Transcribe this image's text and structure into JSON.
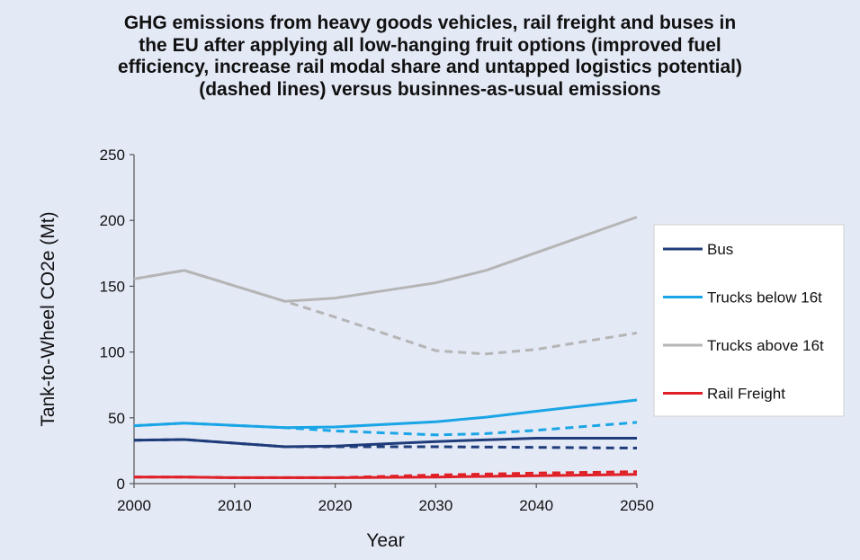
{
  "chart_data": {
    "type": "line",
    "title_lines": [
      "GHG emissions from heavy goods vehicles, rail freight and buses in",
      "the EU after applying all low-hanging fruit options (improved fuel",
      "efficiency, increase rail modal share and untapped logistics potential)",
      "(dashed lines) versus businnes-as-usual emissions"
    ],
    "xlabel": "Year",
    "ylabel": "Tank-to-Wheel CO2e (Mt)",
    "xlim": [
      2000,
      2050
    ],
    "ylim": [
      0,
      250
    ],
    "xticks": [
      2000,
      2010,
      2020,
      2030,
      2040,
      2050
    ],
    "yticks": [
      0,
      50,
      100,
      150,
      200,
      250
    ],
    "grid": false,
    "legend_position": "right",
    "legend": [
      {
        "name": "Bus",
        "color": "#1f3c7a"
      },
      {
        "name": "Trucks below 16t",
        "color": "#1aa5e6"
      },
      {
        "name": "Trucks above 16t",
        "color": "#b5b5b5"
      },
      {
        "name": "Rail Freight",
        "color": "#e02027"
      }
    ],
    "series": [
      {
        "name": "Bus",
        "style": "solid",
        "color": "#1f3c7a",
        "x": [
          2000,
          2005,
          2015,
          2020,
          2030,
          2040,
          2050
        ],
        "y": [
          33,
          33.5,
          28,
          28.5,
          32,
          34.5,
          34.5
        ]
      },
      {
        "name": "Bus",
        "style": "dashed",
        "color": "#1f3c7a",
        "x": [
          2000,
          2005,
          2015,
          2020,
          2030,
          2040,
          2050
        ],
        "y": [
          33,
          33.5,
          28,
          28,
          28,
          27.5,
          27
        ]
      },
      {
        "name": "Trucks below 16t",
        "style": "solid",
        "color": "#1aa5e6",
        "x": [
          2000,
          2005,
          2015,
          2020,
          2030,
          2035,
          2040,
          2050
        ],
        "y": [
          44,
          46,
          42.5,
          43,
          47,
          50.5,
          55,
          63.5
        ]
      },
      {
        "name": "Trucks below 16t",
        "style": "dashed",
        "color": "#1aa5e6",
        "x": [
          2000,
          2005,
          2015,
          2020,
          2030,
          2035,
          2040,
          2050
        ],
        "y": [
          44,
          46,
          42.5,
          40,
          37,
          38,
          40.5,
          46.5
        ]
      },
      {
        "name": "Trucks above 16t",
        "style": "solid",
        "color": "#b5b5b5",
        "x": [
          2000,
          2005,
          2015,
          2020,
          2030,
          2035,
          2040,
          2050
        ],
        "y": [
          155.5,
          162,
          138.5,
          141,
          152.5,
          162,
          175.5,
          202.5
        ]
      },
      {
        "name": "Trucks above 16t",
        "style": "dashed",
        "color": "#b5b5b5",
        "x": [
          2000,
          2005,
          2015,
          2020,
          2030,
          2035,
          2040,
          2050
        ],
        "y": [
          155.5,
          162,
          138.5,
          126.5,
          101,
          98.5,
          102,
          114.5
        ]
      },
      {
        "name": "Rail Freight",
        "style": "solid",
        "color": "#e02027",
        "x": [
          2000,
          2005,
          2010,
          2020,
          2030,
          2040,
          2050
        ],
        "y": [
          5,
          5,
          4.5,
          4.5,
          5,
          6,
          7
        ]
      },
      {
        "name": "Rail Freight",
        "style": "dashed",
        "color": "#e02027",
        "x": [
          2000,
          2005,
          2010,
          2020,
          2030,
          2040,
          2050
        ],
        "y": [
          5,
          5,
          4.5,
          4.5,
          6.5,
          8,
          9
        ]
      }
    ]
  }
}
